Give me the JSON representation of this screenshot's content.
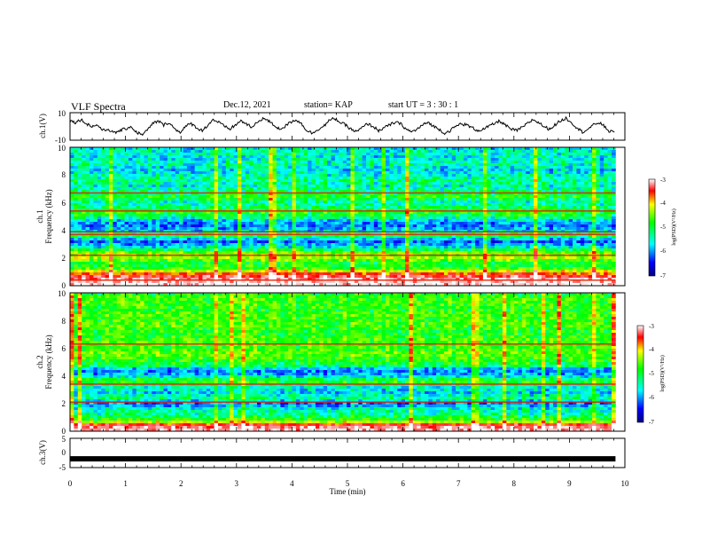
{
  "header": {
    "title": "VLF Spectra",
    "date": "Dec.12, 2021",
    "station": "station= KAP",
    "start": "start  UT  =   3  : 30 : 1"
  },
  "chart_data": [
    {
      "type": "line",
      "panel": "ch1-waveform",
      "ylabel": "ch.1(V)",
      "yticks": [
        "10",
        "-10"
      ],
      "ylim": [
        -10,
        10
      ],
      "xlim": [
        0,
        10
      ],
      "x_range_data": [
        0,
        9.83
      ],
      "series": [
        {
          "values": [
            4,
            3,
            5,
            2,
            0,
            1,
            -3,
            -2,
            -5,
            -3,
            -2,
            0,
            -4,
            -6,
            -3,
            2,
            4,
            1,
            3,
            -2,
            -4,
            0,
            2,
            -1,
            -3,
            1,
            5,
            3,
            0,
            -2,
            1,
            4,
            2,
            -1,
            3,
            6,
            4,
            1,
            -2,
            0,
            3,
            5,
            2,
            -3,
            -5,
            -2,
            0,
            4,
            6,
            3,
            1,
            -2,
            -4,
            -1,
            2,
            0,
            -3,
            -1,
            1,
            3,
            2,
            -2,
            -4,
            -2,
            1,
            3,
            0,
            -2,
            -5,
            -3,
            0,
            2,
            1,
            -1,
            -3,
            -2,
            0,
            2,
            4,
            1,
            -2,
            -3,
            -1,
            2,
            5,
            3,
            0,
            -2,
            1,
            4,
            6,
            3,
            -1,
            -4,
            -2,
            1,
            3,
            0,
            -4,
            -3
          ]
        }
      ],
      "color": "#000000"
    },
    {
      "type": "heatmap",
      "panel": "ch1-spectrogram",
      "ylabel_line1": "ch.1",
      "ylabel_line2": "Frequency  (kHz)",
      "ylim": [
        0,
        10
      ],
      "xlim": [
        0,
        10
      ],
      "yticks": [
        "0",
        "2",
        "4",
        "6",
        "8",
        "10"
      ],
      "colorbar": {
        "label": "log(PSD)(V²/Hz)",
        "range": [
          -7,
          -3
        ],
        "ticks": [
          "-3",
          "-4",
          "-5",
          "-6",
          "-7"
        ]
      },
      "band_profile": [
        {
          "f": 0.0,
          "v": -3.0
        },
        {
          "f": 0.4,
          "v": -3.2
        },
        {
          "f": 0.8,
          "v": -3.6
        },
        {
          "f": 1.2,
          "v": -4.9
        },
        {
          "f": 1.6,
          "v": -5.2
        },
        {
          "f": 2.0,
          "v": -4.6
        },
        {
          "f": 2.4,
          "v": -4.8
        },
        {
          "f": 2.8,
          "v": -5.7
        },
        {
          "f": 3.2,
          "v": -6.2
        },
        {
          "f": 3.6,
          "v": -5.2
        },
        {
          "f": 4.0,
          "v": -5.9
        },
        {
          "f": 4.4,
          "v": -6.1
        },
        {
          "f": 4.8,
          "v": -5.7
        },
        {
          "f": 5.2,
          "v": -5.0
        },
        {
          "f": 5.6,
          "v": -5.3
        },
        {
          "f": 6.0,
          "v": -5.6
        },
        {
          "f": 6.4,
          "v": -5.0
        },
        {
          "f": 6.8,
          "v": -5.4
        },
        {
          "f": 7.2,
          "v": -5.6
        },
        {
          "f": 7.6,
          "v": -5.4
        },
        {
          "f": 8.0,
          "v": -5.6
        },
        {
          "f": 8.4,
          "v": -5.8
        },
        {
          "f": 8.8,
          "v": -5.5
        },
        {
          "f": 9.2,
          "v": -5.7
        },
        {
          "f": 9.6,
          "v": -5.6
        },
        {
          "f": 10.0,
          "v": -5.7
        }
      ],
      "lines_khz": [
        6.7,
        5.4,
        3.9,
        3.7,
        2.2,
        0.4
      ]
    },
    {
      "type": "heatmap",
      "panel": "ch2-spectrogram",
      "ylabel_line1": "ch.2",
      "ylabel_line2": "Frequency  (kHz)",
      "ylim": [
        0,
        10
      ],
      "xlim": [
        0,
        10
      ],
      "yticks": [
        "0",
        "2",
        "4",
        "6",
        "8",
        "10"
      ],
      "colorbar": {
        "label": "log(PSD)(V²/Hz)",
        "range": [
          -7,
          -3
        ],
        "ticks": [
          "-3",
          "-4",
          "-5",
          "-6",
          "-7"
        ]
      },
      "band_profile": [
        {
          "f": 0.0,
          "v": -3.1
        },
        {
          "f": 0.4,
          "v": -3.4
        },
        {
          "f": 0.8,
          "v": -5.0
        },
        {
          "f": 1.2,
          "v": -5.4
        },
        {
          "f": 1.6,
          "v": -5.6
        },
        {
          "f": 2.0,
          "v": -6.1
        },
        {
          "f": 2.4,
          "v": -5.4
        },
        {
          "f": 2.8,
          "v": -5.8
        },
        {
          "f": 3.2,
          "v": -5.6
        },
        {
          "f": 3.6,
          "v": -5.0
        },
        {
          "f": 4.0,
          "v": -5.8
        },
        {
          "f": 4.4,
          "v": -6.1
        },
        {
          "f": 4.8,
          "v": -5.2
        },
        {
          "f": 5.2,
          "v": -5.0
        },
        {
          "f": 5.6,
          "v": -4.8
        },
        {
          "f": 6.0,
          "v": -5.0
        },
        {
          "f": 6.4,
          "v": -4.9
        },
        {
          "f": 6.8,
          "v": -5.0
        },
        {
          "f": 7.2,
          "v": -5.1
        },
        {
          "f": 7.6,
          "v": -4.9
        },
        {
          "f": 8.0,
          "v": -5.0
        },
        {
          "f": 8.4,
          "v": -4.9
        },
        {
          "f": 8.8,
          "v": -5.1
        },
        {
          "f": 9.2,
          "v": -4.9
        },
        {
          "f": 9.6,
          "v": -5.0
        },
        {
          "f": 10.0,
          "v": -5.1
        }
      ],
      "lines_khz": [
        6.3,
        3.4,
        2.1
      ]
    },
    {
      "type": "line",
      "panel": "ch3-waveform",
      "ylabel": "ch.3(V)",
      "yticks": [
        "5",
        "0",
        "-5"
      ],
      "ylim": [
        -5,
        5
      ],
      "xlim": [
        0,
        10
      ],
      "x_range_data": [
        0,
        9.83
      ],
      "series": [
        {
          "values": [
            -2,
            -2
          ]
        }
      ],
      "color": "#000000"
    }
  ],
  "xaxis": {
    "label": "Time  (min)",
    "ticks": [
      "0",
      "1",
      "2",
      "3",
      "4",
      "5",
      "6",
      "7",
      "8",
      "9",
      "10"
    ]
  }
}
